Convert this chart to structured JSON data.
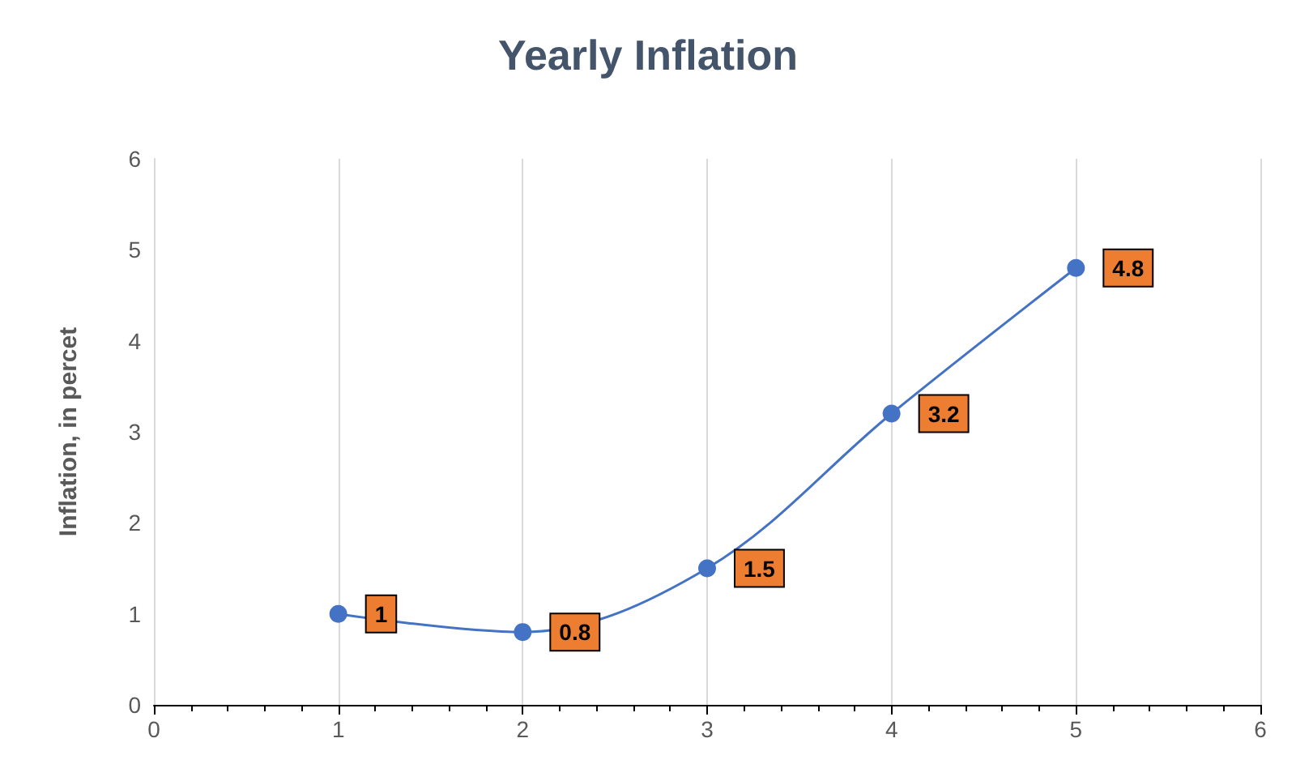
{
  "chart_data": {
    "type": "line",
    "title": "Yearly Inflation",
    "ylabel": "Inflation, in percet",
    "x": [
      1,
      2,
      3,
      4,
      5
    ],
    "series": [
      {
        "color": "#4472c4",
        "values": [
          1,
          0.8,
          1.5,
          3.2,
          4.8
        ]
      }
    ],
    "xlim": [
      0,
      6
    ],
    "xticks": [
      0,
      1,
      2,
      3,
      4,
      5,
      6
    ],
    "ylim": [
      0,
      6
    ],
    "yticks": [
      0,
      1,
      2,
      3,
      4,
      5,
      6
    ],
    "grid": "x",
    "marker": "circle",
    "line_style": "solid",
    "data_labels": true
  }
}
